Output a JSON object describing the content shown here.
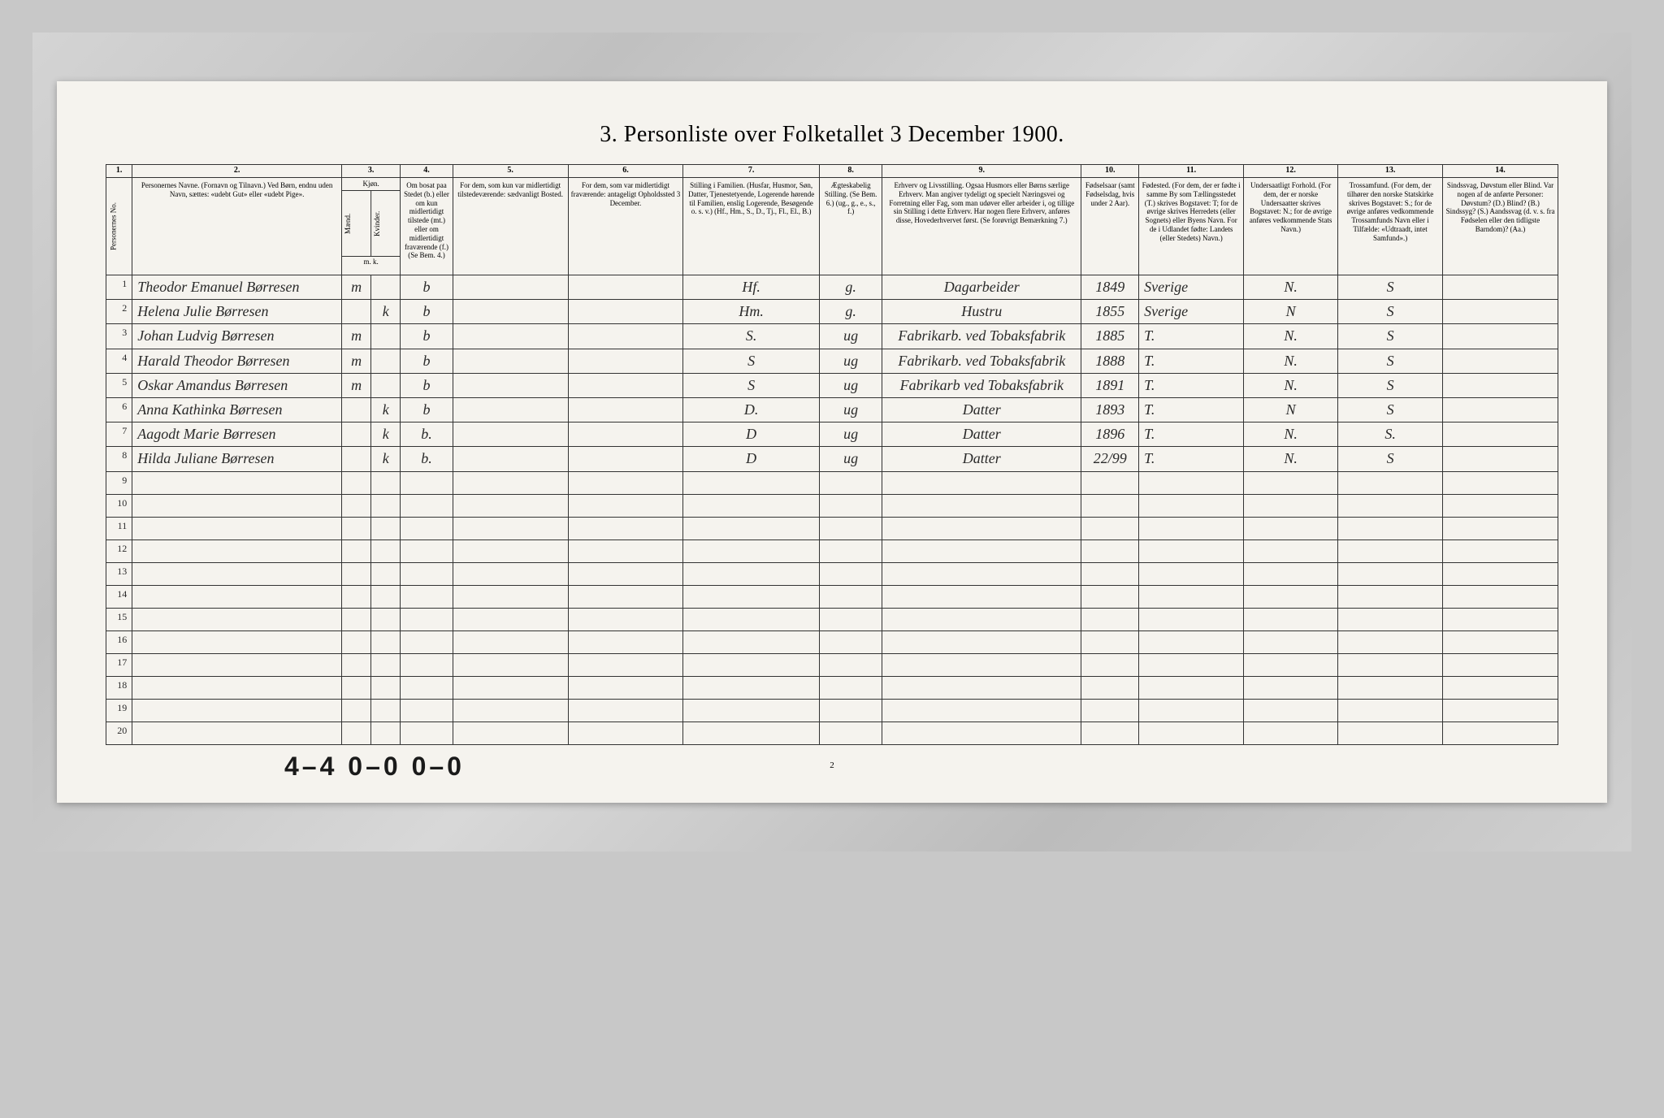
{
  "title": "3. Personliste over Folketallet 3 December 1900.",
  "colNumbers": [
    "1.",
    "2.",
    "3.",
    "4.",
    "5.",
    "6.",
    "7.",
    "8.",
    "9.",
    "10.",
    "11.",
    "12.",
    "13.",
    "14."
  ],
  "headers": {
    "c1": "Personernes No.",
    "c2": "Personernes Navne.\n(Fornavn og Tilnavn.)\nVed Børn, endnu uden Navn, sættes: «udebt Gut» eller «udebt Pige».",
    "c3a": "Kjøn.",
    "c3_m": "Mænd.",
    "c3_k": "Kvinder.",
    "c3_mk": "m. k.",
    "c4": "Om bosat paa Stedet (b.) eller om kun midlertidigt tilstede (mt.) eller om midlertidigt fraværende (f.)\n(Se Bem. 4.)",
    "c5": "For dem, som kun var midlertidigt tilstedeværende:\nsædvanligt Bosted.",
    "c6": "For dem, som var midlertidigt fraværende:\nantageligt Opholdssted 3 December.",
    "c7": "Stilling i Familien.\n(Husfar, Husmor, Søn, Datter, Tjenestetyende, Logerende hørende til Familien, enslig Logerende, Besøgende o. s. v.)\n(Hf., Hm., S., D., Tj., Fl., El., B.)",
    "c8": "Ægteskabelig Stilling.\n(Se Bem. 6.)\n(ug., g., e., s., f.)",
    "c9": "Erhverv og Livsstilling.\nOgsaa Husmors eller Børns særlige Erhverv. Man angiver tydeligt og specielt Næringsvei og Forretning eller Fag, som man udøver eller arbeider i, og tillige sin Stilling i dette Erhverv. Har nogen flere Erhverv, anføres disse, Hovederhvervet først.\n(Se forøvrigt Bemærkning 7.)",
    "c10": "Fødselsaar\n(samt Fødselsdag, hvis under 2 Aar).",
    "c11": "Fødested.\n(For dem, der er fødte i samme By som Tællingsstedet (T.) skrives Bogstavet: T; for de øvrige skrives Herredets (eller Sognets) eller Byens Navn. For de i Udlandet fødte: Landets (eller Stedets) Navn.)",
    "c12": "Undersaatligt Forhold.\n(For dem, der er norske Undersaatter skrives Bogstavet: N.; for de øvrige anføres vedkommende Stats Navn.)",
    "c13": "Trossamfund.\n(For dem, der tilhører den norske Statskirke skrives Bogstavet: S.; for de øvrige anføres vedkommende Trossamfunds Navn eller i Tilfælde: «Udtraadt, intet Samfund».)",
    "c14": "Sindssvag, Døvstum eller Blind.\nVar nogen af de anførte Personer:\nDøvstum? (D.)\nBlind? (B.)\nSindssyg? (S.)\nAandssvag (d. v. s. fra Fødselen eller den tidligste Barndom)? (Aa.)"
  },
  "rows": [
    {
      "n": "1",
      "name": "Theodor Emanuel Børresen",
      "sex": "m",
      "res": "b",
      "fam": "Hf.",
      "mar": "g.",
      "occ": "Dagarbeider",
      "yr": "1849",
      "bp": "Sverige",
      "nat": "N.",
      "rel": "S"
    },
    {
      "n": "2",
      "name": "Helena Julie Børresen",
      "sex": "k",
      "res": "b",
      "fam": "Hm.",
      "mar": "g.",
      "occ": "Hustru",
      "yr": "1855",
      "bp": "Sverige",
      "nat": "N",
      "rel": "S"
    },
    {
      "n": "3",
      "name": "Johan Ludvig Børresen",
      "sex": "m",
      "res": "b",
      "fam": "S.",
      "mar": "ug",
      "occ": "Fabrikarb. ved Tobaksfabrik",
      "yr": "1885",
      "bp": "T.",
      "nat": "N.",
      "rel": "S"
    },
    {
      "n": "4",
      "name": "Harald Theodor Børresen",
      "sex": "m",
      "res": "b",
      "fam": "S",
      "mar": "ug",
      "occ": "Fabrikarb. ved Tobaksfabrik",
      "yr": "1888",
      "bp": "T.",
      "nat": "N.",
      "rel": "S"
    },
    {
      "n": "5",
      "name": "Oskar Amandus Børresen",
      "sex": "m",
      "res": "b",
      "fam": "S",
      "mar": "ug",
      "occ": "Fabrikarb ved Tobaksfabrik",
      "yr": "1891",
      "bp": "T.",
      "nat": "N.",
      "rel": "S"
    },
    {
      "n": "6",
      "name": "Anna Kathinka Børresen",
      "sex": "k",
      "res": "b",
      "fam": "D.",
      "mar": "ug",
      "occ": "Datter",
      "yr": "1893",
      "bp": "T.",
      "nat": "N",
      "rel": "S"
    },
    {
      "n": "7",
      "name": "Aagodt Marie Børresen",
      "sex": "k",
      "res": "b.",
      "fam": "D",
      "mar": "ug",
      "occ": "Datter",
      "yr": "1896",
      "bp": "T.",
      "nat": "N.",
      "rel": "S."
    },
    {
      "n": "8",
      "name": "Hilda Juliane Børresen",
      "sex": "k",
      "res": "b.",
      "fam": "D",
      "mar": "ug",
      "occ": "Datter",
      "yr": "22/99",
      "bp": "T.",
      "nat": "N.",
      "rel": "S"
    }
  ],
  "emptyRows": [
    "9",
    "10",
    "11",
    "12",
    "13",
    "14",
    "15",
    "16",
    "17",
    "18",
    "19",
    "20"
  ],
  "bottomNote": "4–4 0–0 0–0",
  "pageNum": "2",
  "styling": {
    "background_color": "#f5f3ee",
    "border_color": "#333333",
    "text_color": "#2a2a2a",
    "title_fontsize": 28,
    "header_fontsize": 9,
    "body_fontsize": 18,
    "handwriting_font": "Brush Script MT",
    "print_font": "Times New Roman"
  }
}
